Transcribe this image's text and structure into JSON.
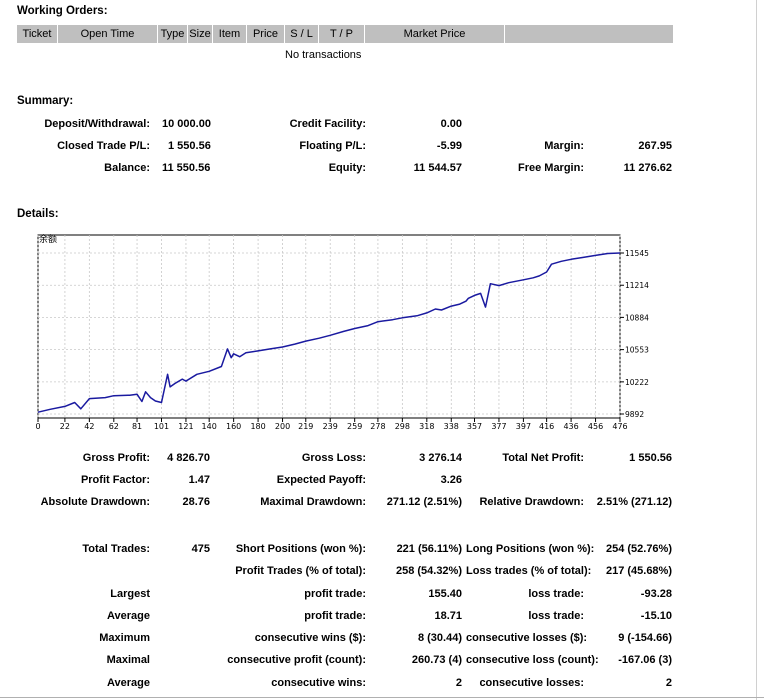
{
  "working_orders": {
    "title": "Working Orders:",
    "columns": [
      "Ticket",
      "Open Time",
      "Type",
      "Size",
      "Item",
      "Price",
      "S / L",
      "T / P",
      "Market Price"
    ],
    "empty_text": "No transactions"
  },
  "summary": {
    "title": "Summary:",
    "deposit_label": "Deposit/Withdrawal:",
    "deposit_value": "10 000.00",
    "credit_label": "Credit Facility:",
    "credit_value": "0.00",
    "closed_label": "Closed Trade P/L:",
    "closed_value": "1 550.56",
    "floating_label": "Floating P/L:",
    "floating_value": "-5.99",
    "margin_label": "Margin:",
    "margin_value": "267.95",
    "balance_label": "Balance:",
    "balance_value": "11 550.56",
    "equity_label": "Equity:",
    "equity_value": "11 544.57",
    "free_margin_label": "Free Margin:",
    "free_margin_value": "11 276.62"
  },
  "details": {
    "title": "Details:",
    "rows": [
      [
        "Gross Profit:",
        "4 826.70",
        "Gross Loss:",
        "3 276.14",
        "Total Net Profit:",
        "1 550.56"
      ],
      [
        "Profit Factor:",
        "1.47",
        "Expected Payoff:",
        "3.26",
        "",
        ""
      ],
      [
        "Absolute Drawdown:",
        "28.76",
        "Maximal Drawdown:",
        "271.12 (2.51%)",
        "Relative Drawdown:",
        "2.51% (271.12)"
      ],
      [
        "",
        "",
        "",
        "",
        "",
        ""
      ],
      [
        "Total Trades:",
        "475",
        "Short Positions (won %):",
        "221 (56.11%)",
        "Long Positions (won %):",
        "254 (52.76%)"
      ],
      [
        "",
        "",
        "Profit Trades (% of total):",
        "258 (54.32%)",
        "Loss trades (% of total):",
        "217 (45.68%)"
      ],
      [
        "Largest",
        "",
        "profit trade:",
        "155.40",
        "loss trade:",
        "-93.28"
      ],
      [
        "Average",
        "",
        "profit trade:",
        "18.71",
        "loss trade:",
        "-15.10"
      ],
      [
        "Maximum",
        "",
        "consecutive wins ($):",
        "8 (30.44)",
        "consecutive losses ($):",
        "9 (-154.66)"
      ],
      [
        "Maximal",
        "",
        "consecutive profit (count):",
        "260.73 (4)",
        "consecutive loss (count):",
        "-167.06 (3)"
      ],
      [
        "Average",
        "",
        "consecutive wins:",
        "2",
        "consecutive losses:",
        "2"
      ]
    ]
  },
  "chart_data": {
    "type": "line",
    "title": "余额",
    "line_color": "#1a1aa0",
    "grid": true,
    "x_ticks": [
      0,
      22,
      42,
      62,
      81,
      101,
      121,
      140,
      160,
      180,
      200,
      219,
      239,
      259,
      278,
      298,
      318,
      338,
      357,
      377,
      397,
      416,
      436,
      456,
      476
    ],
    "y_ticks": [
      9892,
      10222,
      10553,
      10884,
      11214,
      11545
    ],
    "xlim": [
      0,
      476
    ],
    "ylim": [
      9892,
      11545
    ],
    "series": [
      {
        "x": [
          0,
          10,
          22,
          30,
          35,
          42,
          55,
          62,
          75,
          81,
          85,
          88,
          92,
          96,
          101,
          106,
          108,
          112,
          118,
          121,
          130,
          140,
          150,
          155,
          158,
          160,
          165,
          170,
          180,
          190,
          200,
          210,
          219,
          230,
          239,
          250,
          259,
          270,
          278,
          290,
          298,
          310,
          318,
          325,
          330,
          338,
          345,
          350,
          352,
          357,
          362,
          366,
          370,
          377,
          385,
          397,
          405,
          410,
          416,
          420,
          428,
          436,
          446,
          456,
          466,
          476
        ],
        "y": [
          9910,
          9940,
          9970,
          10010,
          9945,
          10050,
          10060,
          10080,
          10085,
          10095,
          10020,
          10120,
          10060,
          10025,
          10010,
          10300,
          10170,
          10205,
          10250,
          10230,
          10300,
          10330,
          10380,
          10560,
          10470,
          10510,
          10480,
          10520,
          10540,
          10560,
          10580,
          10610,
          10640,
          10670,
          10700,
          10740,
          10770,
          10800,
          10840,
          10860,
          10880,
          10900,
          10930,
          10970,
          10960,
          11000,
          11020,
          11050,
          11080,
          11110,
          11130,
          10990,
          11230,
          11210,
          11240,
          11270,
          11290,
          11310,
          11350,
          11430,
          11460,
          11480,
          11500,
          11520,
          11540,
          11545
        ]
      }
    ]
  }
}
